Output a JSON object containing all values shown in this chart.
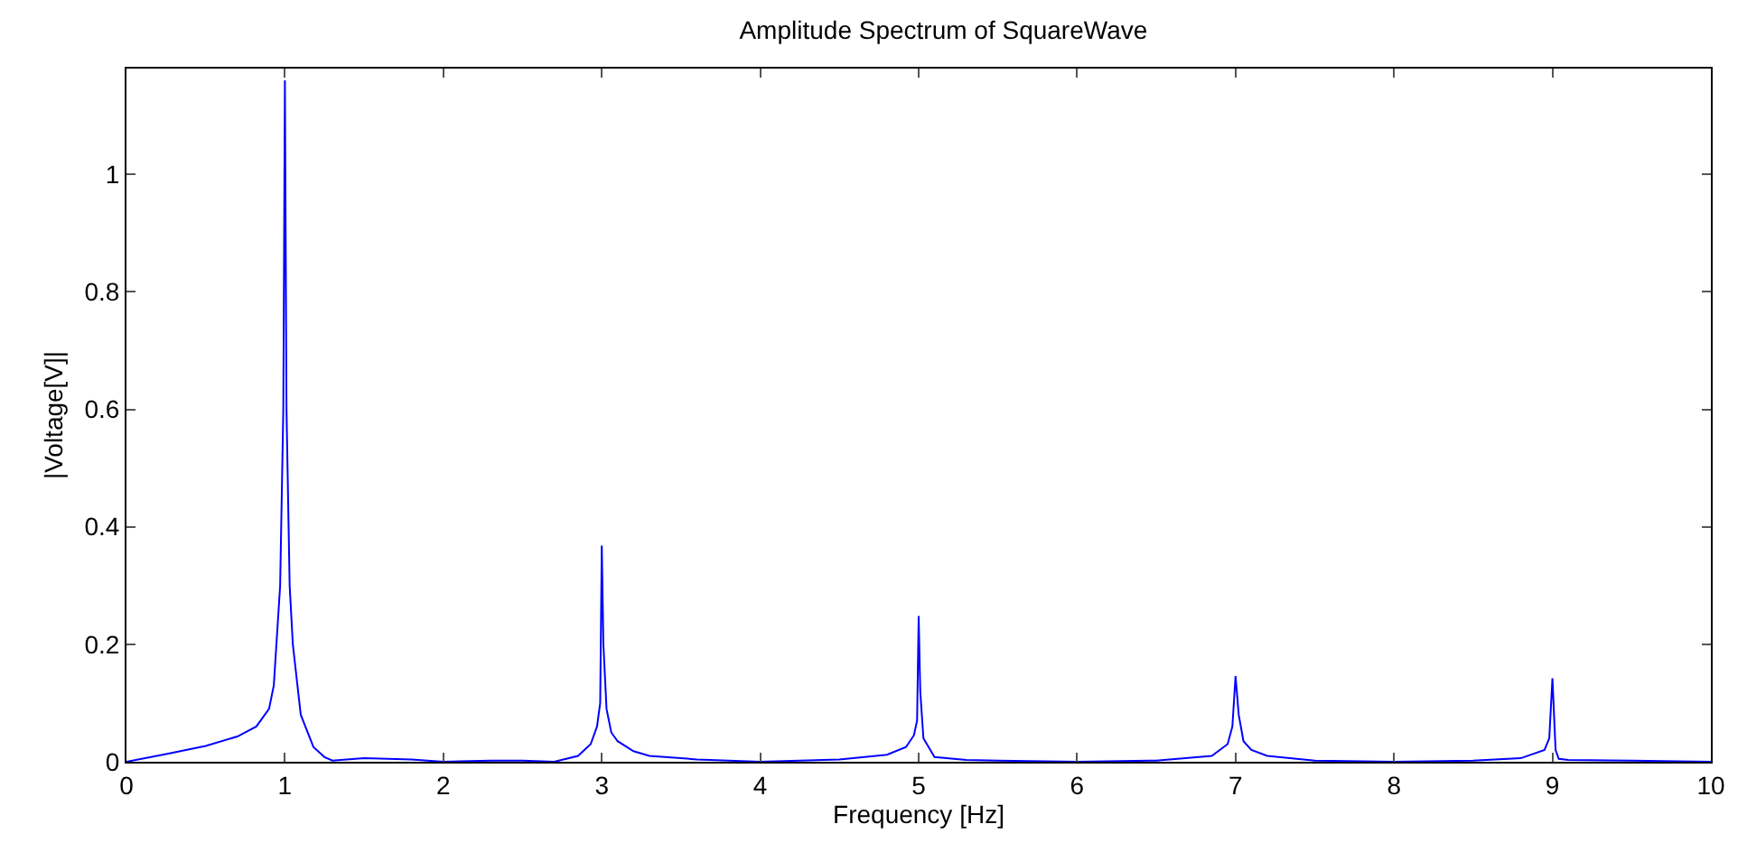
{
  "chart_data": {
    "type": "line",
    "title": "Amplitude Spectrum of SquareWave",
    "xlabel": "Frequency [Hz]",
    "ylabel": "|Voltage[V]|",
    "xlim": [
      0,
      10
    ],
    "ylim": [
      0,
      1.18
    ],
    "xticks": [
      0,
      1,
      2,
      3,
      4,
      5,
      6,
      7,
      8,
      9,
      10
    ],
    "yticks": [
      0,
      0.2,
      0.4,
      0.6,
      0.8,
      1
    ],
    "marker": "none",
    "line_style": "solid",
    "series": [
      {
        "color": "#0000ff",
        "x": [
          0,
          0.25,
          0.5,
          0.7,
          0.82,
          0.9,
          0.93,
          0.97,
          0.99,
          1.0,
          1.01,
          1.03,
          1.05,
          1.1,
          1.18,
          1.25,
          1.3,
          1.5,
          1.8,
          2.0,
          2.3,
          2.5,
          2.7,
          2.85,
          2.93,
          2.97,
          2.99,
          3.0,
          3.01,
          3.03,
          3.06,
          3.1,
          3.2,
          3.3,
          3.6,
          4.0,
          4.5,
          4.8,
          4.92,
          4.97,
          4.99,
          5.0,
          5.01,
          5.03,
          5.1,
          5.3,
          5.5,
          6.0,
          6.5,
          6.85,
          6.95,
          6.98,
          7.0,
          7.02,
          7.05,
          7.1,
          7.2,
          7.5,
          8.0,
          8.5,
          8.8,
          8.95,
          8.98,
          9.0,
          9.02,
          9.04,
          9.1,
          9.5,
          10
        ],
        "values": [
          0,
          0.013,
          0.027,
          0.043,
          0.06,
          0.09,
          0.13,
          0.3,
          0.6,
          1.16,
          0.6,
          0.3,
          0.2,
          0.08,
          0.025,
          0.008,
          0.002,
          0.006,
          0.004,
          0,
          0.002,
          0.002,
          0,
          0.01,
          0.03,
          0.06,
          0.1,
          0.368,
          0.2,
          0.09,
          0.05,
          0.035,
          0.018,
          0.01,
          0.004,
          0,
          0.004,
          0.012,
          0.025,
          0.045,
          0.07,
          0.248,
          0.12,
          0.04,
          0.008,
          0.003,
          0.002,
          0,
          0.002,
          0.01,
          0.03,
          0.06,
          0.146,
          0.08,
          0.035,
          0.02,
          0.01,
          0.002,
          0,
          0.002,
          0.006,
          0.02,
          0.04,
          0.142,
          0.02,
          0.005,
          0.003,
          0.002,
          0
        ]
      }
    ]
  }
}
